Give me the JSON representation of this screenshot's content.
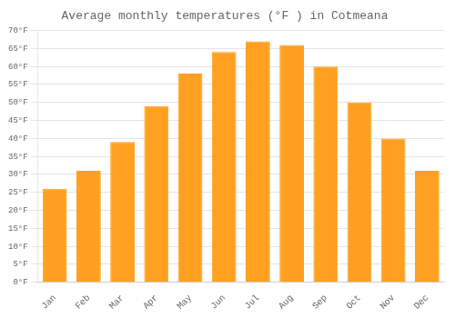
{
  "chart_data": {
    "type": "bar",
    "title": "Average monthly temperatures (°F ) in Cotmeana",
    "categories": [
      "Jan",
      "Feb",
      "Mar",
      "Apr",
      "May",
      "Jun",
      "Jul",
      "Aug",
      "Sep",
      "Oct",
      "Nov",
      "Dec"
    ],
    "values": [
      26.0,
      31.0,
      39.0,
      49.0,
      58.0,
      64.0,
      67.0,
      66.0,
      60.0,
      50.0,
      40.0,
      31.0
    ],
    "color": "#FFA020",
    "ylim": [
      0,
      70
    ],
    "yticks": [
      {
        "value": 0,
        "label": "0°F"
      },
      {
        "value": 5,
        "label": "5°F"
      },
      {
        "value": 10,
        "label": "10°F"
      },
      {
        "value": 15,
        "label": "15°F"
      },
      {
        "value": 20,
        "label": "20°F"
      },
      {
        "value": 25,
        "label": "25°F"
      },
      {
        "value": 30,
        "label": "30°F"
      },
      {
        "value": 35,
        "label": "35°F"
      },
      {
        "value": 40,
        "label": "40°F"
      },
      {
        "value": 45,
        "label": "45°F"
      },
      {
        "value": 50,
        "label": "50°F"
      },
      {
        "value": 55,
        "label": "55°F"
      },
      {
        "value": 60,
        "label": "60°F"
      },
      {
        "value": 65,
        "label": "65°F"
      },
      {
        "value": 70,
        "label": "70°F"
      }
    ],
    "grid": true
  }
}
